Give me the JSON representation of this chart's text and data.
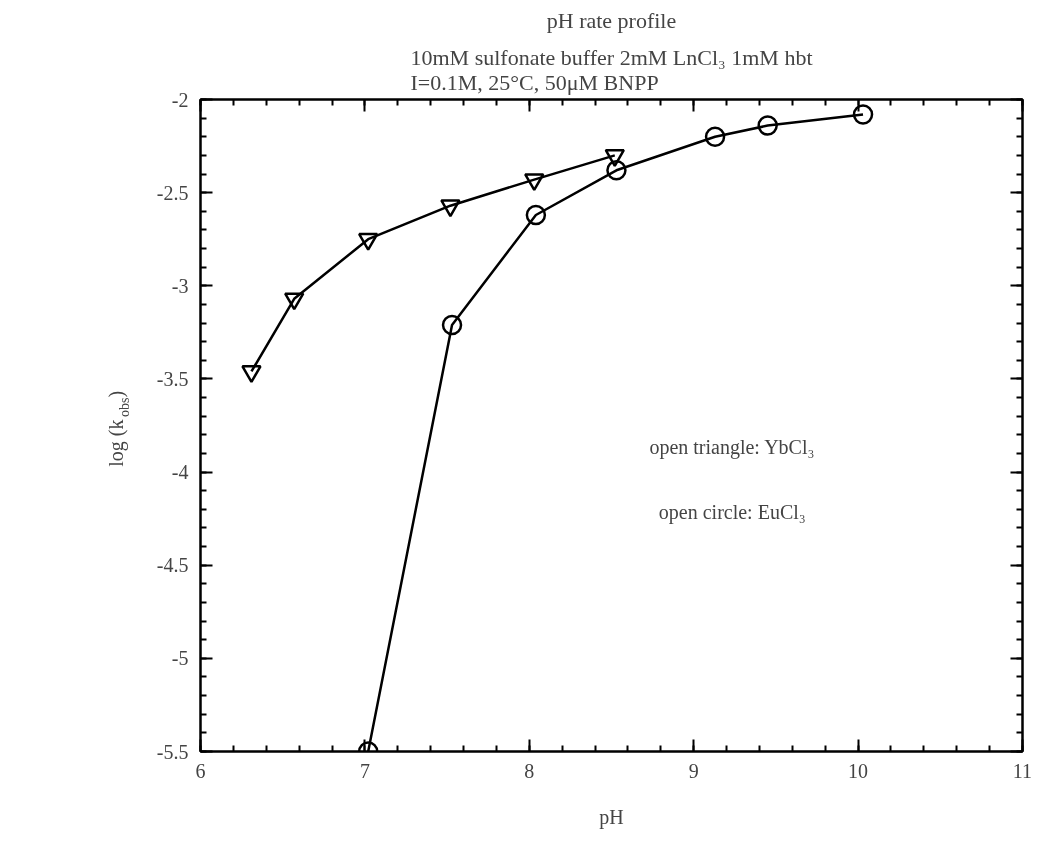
{
  "chart_data": {
    "type": "line",
    "title": "pH rate profile",
    "subtitle": "10mM sulfonate buffer 2mM LnCl₃ 1mM hbt\nI=0.1M, 25°C, 50μM BNPP",
    "xlabel": "pH",
    "ylabel": "log (k$_{obs}$)",
    "series": [
      {
        "color": "#000000",
        "marker": "triangle",
        "x": [
          6.31,
          6.57,
          7.02,
          7.52,
          8.03,
          8.52
        ],
        "values": [
          -3.46,
          -3.07,
          -2.75,
          -2.57,
          -2.43,
          -2.3
        ]
      },
      {
        "color": "#000000",
        "marker": "circle",
        "x": [
          7.02,
          7.53,
          8.04,
          8.53,
          9.13,
          9.45,
          10.03
        ],
        "values": [
          -5.5,
          -3.21,
          -2.62,
          -2.38,
          -2.2,
          -2.14,
          -2.08
        ]
      }
    ],
    "annotations": [
      "open triangle:  YbCl₃",
      "open circle:  EuCl₃"
    ],
    "xlim": [
      6,
      11
    ],
    "xticks": [
      6,
      7,
      8,
      9,
      10,
      11
    ],
    "ylim": [
      -5.5,
      -2
    ],
    "yticks": [
      -5.5,
      -5,
      -4.5,
      -4,
      -3.5,
      -3,
      -2.5,
      -2
    ],
    "grid": false,
    "line_style": "solid"
  }
}
